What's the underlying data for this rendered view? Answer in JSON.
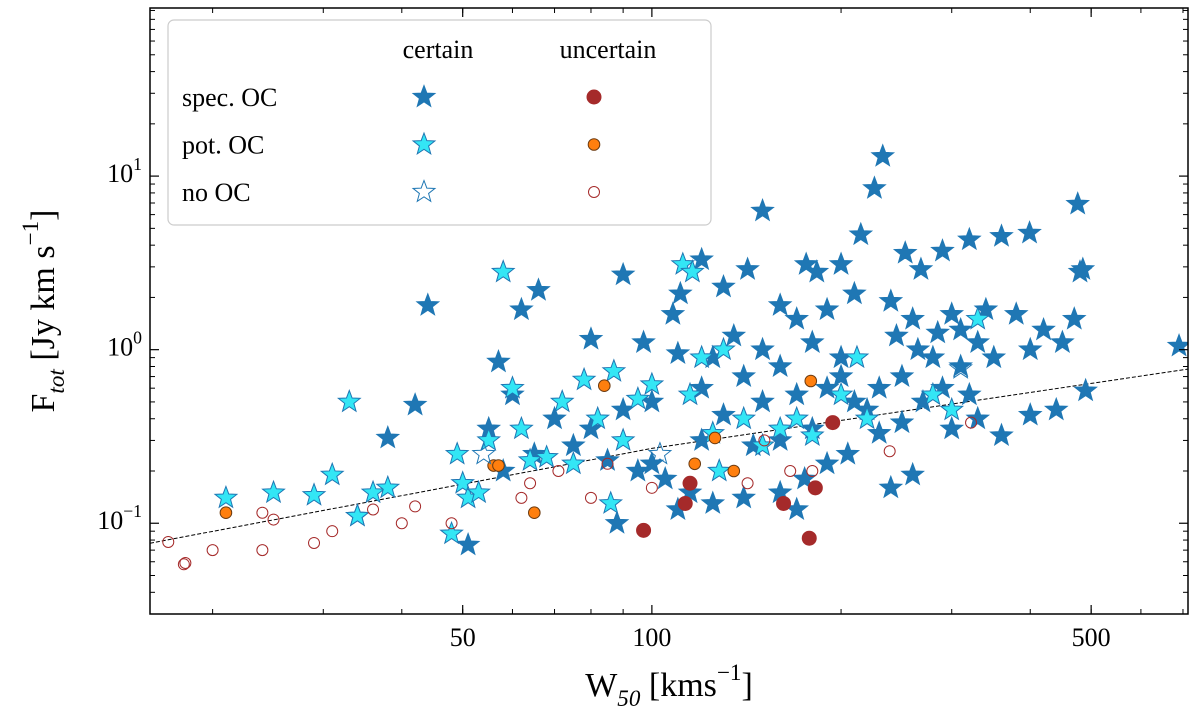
{
  "chart_data": {
    "type": "scatter",
    "xlabel": "W_{50} [kms^{−1}]",
    "ylabel": "F_{tot} [Jy km s^{−1}]",
    "xscale": "log",
    "yscale": "log",
    "xlim": [
      15.9,
      713
    ],
    "ylim": [
      0.03,
      93
    ],
    "xticks": [
      50,
      100,
      500
    ],
    "yticks": [
      {
        "value": 0.1,
        "label": "10^{−1}"
      },
      {
        "value": 1,
        "label": "10^{0}"
      },
      {
        "value": 10,
        "label": "10^{1}"
      }
    ],
    "legend": {
      "position": "upper left",
      "columns": [
        "certain",
        "uncertain"
      ],
      "rows": [
        "spec. OC",
        "pot. OC",
        "no OC"
      ]
    },
    "series": [
      {
        "marker": "star",
        "color": "#1f77b4",
        "edgecolor": "#1f77b4",
        "x": [
          44,
          42,
          38,
          34,
          51,
          57,
          62,
          66,
          97,
          80,
          120,
          150,
          233,
          226,
          476,
          690,
          485,
          480,
          399,
          360,
          320,
          253,
          268,
          290,
          215,
          200,
          176,
          183,
          142,
          130,
          111,
          90,
          108,
          160,
          170,
          190,
          210,
          240,
          260,
          300,
          340,
          380,
          420,
          450,
          470,
          400,
          350,
          310,
          280,
          250,
          230,
          200,
          180,
          160,
          140,
          120,
          110,
          100,
          90,
          80,
          70,
          60,
          55,
          58,
          65,
          75,
          85,
          95,
          105,
          115,
          125,
          140,
          160,
          175,
          190,
          205,
          240,
          260,
          300,
          330,
          360,
          400,
          440,
          490,
          130,
          150,
          170,
          190,
          220,
          270,
          290,
          320,
          245,
          265,
          285,
          310,
          330,
          150,
          135,
          125,
          200,
          210,
          180,
          160,
          145,
          120,
          230,
          250,
          100,
          88,
          170,
          110
        ],
        "values": [
          1.8,
          0.48,
          0.31,
          0.11,
          0.075,
          0.85,
          1.7,
          2.2,
          1.1,
          1.15,
          3.3,
          6.3,
          13,
          8.5,
          6.9,
          1.05,
          2.9,
          2.8,
          4.7,
          4.5,
          4.3,
          3.6,
          2.9,
          3.7,
          4.6,
          3.1,
          3.1,
          2.8,
          2.9,
          2.3,
          2.1,
          2.7,
          1.6,
          1.8,
          1.5,
          1.7,
          2.1,
          1.9,
          1.5,
          1.6,
          1.7,
          1.6,
          1.3,
          1.1,
          1.5,
          1.0,
          0.9,
          0.8,
          0.9,
          0.7,
          0.6,
          0.9,
          1.1,
          0.8,
          0.7,
          0.6,
          0.95,
          0.5,
          0.45,
          0.35,
          0.4,
          0.55,
          0.35,
          0.2,
          0.25,
          0.28,
          0.23,
          0.2,
          0.18,
          0.15,
          0.13,
          0.14,
          0.15,
          0.18,
          0.22,
          0.25,
          0.16,
          0.19,
          0.35,
          0.4,
          0.32,
          0.42,
          0.45,
          0.58,
          0.42,
          0.5,
          0.55,
          0.6,
          0.45,
          0.5,
          0.6,
          0.55,
          1.2,
          1.0,
          1.25,
          1.3,
          1.1,
          1.0,
          1.2,
          0.9,
          0.7,
          0.5,
          0.35,
          0.3,
          0.28,
          0.3,
          0.33,
          0.38,
          0.22,
          0.1,
          0.12,
          0.12
        ]
      },
      {
        "marker": "circle",
        "color": "#a52a2a",
        "edgecolor": "#a52a2a",
        "x": [
          97,
          113,
          115,
          162,
          178,
          182,
          194
        ],
        "values": [
          0.091,
          0.13,
          0.17,
          0.13,
          0.082,
          0.16,
          0.38
        ]
      },
      {
        "marker": "star",
        "color": "#33e6f5",
        "edgecolor": "#1f77b4",
        "x": [
          21,
          25,
          29,
          31,
          34,
          36,
          38,
          33,
          48,
          49,
          50,
          51,
          53,
          55,
          58,
          60,
          62,
          64,
          68,
          72,
          78,
          82,
          86,
          87,
          90,
          95,
          100,
          112,
          116,
          115,
          120,
          125,
          130,
          140,
          150,
          160,
          170,
          180,
          200,
          212,
          220,
          330,
          280,
          300,
          128,
          75
        ],
        "values": [
          0.14,
          0.15,
          0.145,
          0.19,
          0.11,
          0.15,
          0.16,
          0.5,
          0.087,
          0.25,
          0.17,
          0.14,
          0.15,
          0.3,
          2.8,
          0.6,
          0.35,
          0.23,
          0.24,
          0.5,
          0.67,
          0.4,
          0.13,
          0.75,
          0.3,
          0.52,
          0.63,
          3.1,
          2.8,
          0.55,
          0.9,
          0.33,
          1.0,
          0.4,
          0.28,
          0.35,
          0.4,
          0.32,
          0.55,
          0.9,
          0.4,
          1.5,
          0.55,
          0.45,
          0.2,
          0.22
        ]
      },
      {
        "marker": "circle",
        "color": "#ff7f0e",
        "edgecolor": "#6b3a10",
        "x": [
          21,
          56,
          57,
          65,
          84,
          117,
          126,
          135,
          179
        ],
        "values": [
          0.115,
          0.215,
          0.215,
          0.115,
          0.62,
          0.22,
          0.31,
          0.2,
          0.66
        ]
      },
      {
        "marker": "star",
        "color": "none",
        "edgecolor": "#1f77b4",
        "x": [
          54,
          103,
          310
        ],
        "values": [
          0.25,
          0.25,
          0.78
        ]
      },
      {
        "marker": "circle",
        "color": "none",
        "edgecolor": "#a52a2a",
        "x": [
          17,
          18,
          18.1,
          20,
          24,
          24,
          25,
          29,
          31,
          36,
          40,
          42,
          48,
          62,
          64,
          71,
          80,
          85,
          100,
          142,
          151,
          166,
          180,
          239,
          322
        ],
        "values": [
          0.078,
          0.058,
          0.059,
          0.07,
          0.07,
          0.115,
          0.105,
          0.077,
          0.09,
          0.12,
          0.1,
          0.125,
          0.1,
          0.14,
          0.17,
          0.2,
          0.14,
          0.22,
          0.16,
          0.17,
          0.3,
          0.2,
          0.2,
          0.26,
          0.38
        ]
      }
    ],
    "fit_line": {
      "color": "#000000",
      "x": [
        15.9,
        100,
        713
      ],
      "values": [
        0.0767,
        0.27,
        0.773
      ]
    }
  }
}
